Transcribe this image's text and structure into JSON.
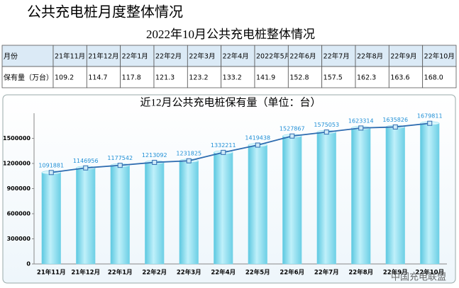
{
  "header": {
    "title": "公共充电桩月度整体情况"
  },
  "table": {
    "title": "2022年10月公共充电桩整体情况",
    "rows": [
      [
        "月份",
        "21年11月",
        "21年12月",
        "22年1月",
        "22年2月",
        "22年3月",
        "22年4月",
        "2022年5月",
        "22年6月",
        "22年7月",
        "22年8月",
        "22年9月",
        "22年10月"
      ],
      [
        "保有量（万台）",
        "109.2",
        "114.7",
        "117.8",
        "121.3",
        "123.2",
        "133.2",
        "141.9",
        "152.8",
        "157.5",
        "162.3",
        "163.6",
        "168.0"
      ]
    ]
  },
  "chart_data": {
    "type": "bar",
    "title": "近12月公共充电桩保有量（单位：台）",
    "categories": [
      "21年11月",
      "21年12月",
      "22年1月",
      "22年2月",
      "22年3月",
      "22年4月",
      "22年5月",
      "22年6月",
      "22年7月",
      "22年8月",
      "22年9月",
      "22年10月"
    ],
    "values": [
      1091881,
      1146956,
      1177542,
      1213092,
      1231825,
      1332211,
      1419438,
      1527867,
      1575053,
      1623314,
      1635826,
      1679811
    ],
    "color": "#7ed6ea",
    "line": true,
    "line_color": "#2e6cb0",
    "ylim": [
      0,
      1800000
    ],
    "yticks": [
      0,
      300000,
      600000,
      900000,
      1200000,
      1500000
    ]
  },
  "watermark": "中国充电联盟"
}
